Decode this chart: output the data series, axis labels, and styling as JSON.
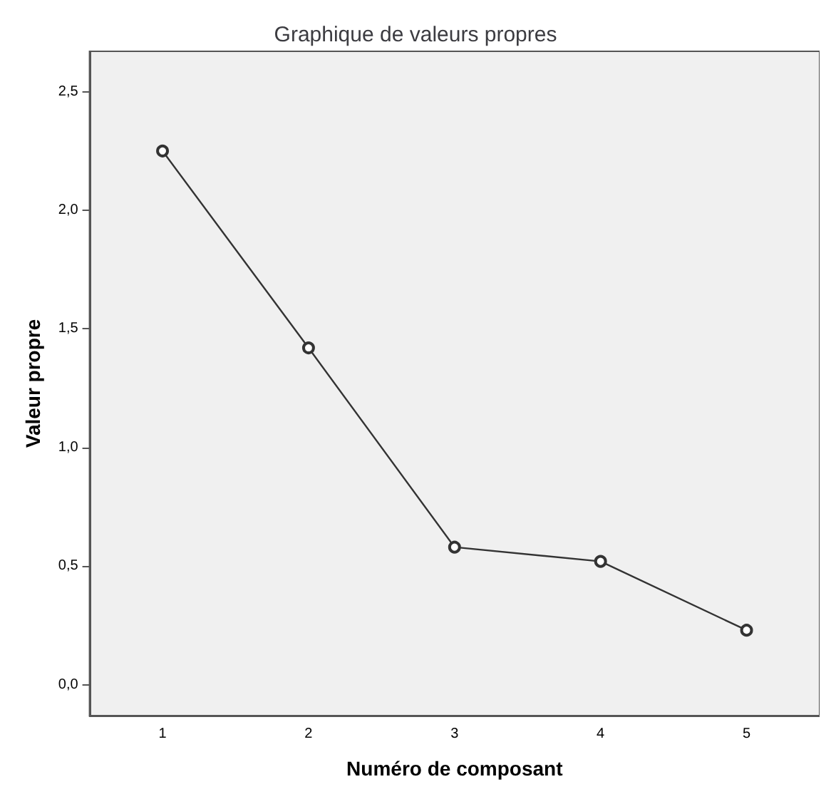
{
  "chart_data": {
    "type": "line",
    "title": "Graphique de valeurs propres",
    "xlabel": "Numéro de composant",
    "ylabel": "Valeur propre",
    "categories": [
      "1",
      "2",
      "3",
      "4",
      "5"
    ],
    "series": [
      {
        "color": "#333333",
        "values": [
          2.25,
          1.42,
          0.58,
          0.52,
          0.23
        ]
      }
    ],
    "ylim": [
      -0.13,
      2.67
    ],
    "yticks": [
      {
        "value": 0,
        "label": "0,0"
      },
      {
        "value": 0.5,
        "label": "0,5"
      },
      {
        "value": 1,
        "label": "1,0"
      },
      {
        "value": 1.5,
        "label": "1,5"
      },
      {
        "value": 2,
        "label": "2,0"
      },
      {
        "value": 2.5,
        "label": "2,5"
      }
    ],
    "marker": "circle",
    "line_style": "solid",
    "grid": false
  }
}
